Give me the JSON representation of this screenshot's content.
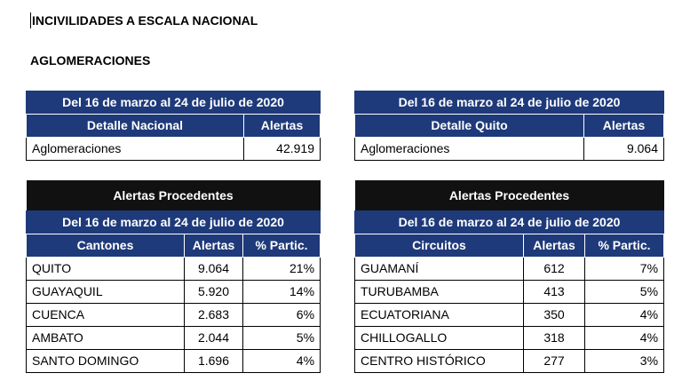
{
  "title": "INCIVILIDADES A ESCALA NACIONAL",
  "subtitle": "AGLOMERACIONES",
  "national_summary": {
    "period": "Del 16 de marzo al 24 de julio de 2020",
    "col_detail": "Detalle Nacional",
    "col_alerts": "Alertas",
    "row_label": "Aglomeraciones",
    "row_value": "42.919"
  },
  "quito_summary": {
    "period": "Del 16 de marzo al 24 de julio de 2020",
    "col_detail": "Detalle Quito",
    "col_alerts": "Alertas",
    "row_label": "Aglomeraciones",
    "row_value": "9.064"
  },
  "cantons_table": {
    "heading": "Alertas Procedentes",
    "period": "Del 16 de marzo al 24 de julio de 2020",
    "columns": [
      "Cantones",
      "Alertas",
      "% Partic."
    ],
    "rows": [
      {
        "name": "QUITO",
        "alerts": "9.064",
        "pct": "21%"
      },
      {
        "name": "GUAYAQUIL",
        "alerts": "5.920",
        "pct": "14%"
      },
      {
        "name": "CUENCA",
        "alerts": "2.683",
        "pct": "6%"
      },
      {
        "name": "AMBATO",
        "alerts": "2.044",
        "pct": "5%"
      },
      {
        "name": "SANTO DOMINGO",
        "alerts": "1.696",
        "pct": "4%"
      }
    ]
  },
  "circuits_table": {
    "heading": "Alertas Procedentes",
    "period": "Del 16 de marzo al 24 de julio de 2020",
    "columns": [
      "Circuitos",
      "Alertas",
      "% Partic."
    ],
    "rows": [
      {
        "name": "GUAMANÍ",
        "alerts": "612",
        "pct": "7%"
      },
      {
        "name": "TURUBAMBA",
        "alerts": "413",
        "pct": "5%"
      },
      {
        "name": "ECUATORIANA",
        "alerts": "350",
        "pct": "4%"
      },
      {
        "name": "CHILLOGALLO",
        "alerts": "318",
        "pct": "4%"
      },
      {
        "name": "CENTRO HISTÓRICO",
        "alerts": "277",
        "pct": "3%"
      }
    ]
  }
}
